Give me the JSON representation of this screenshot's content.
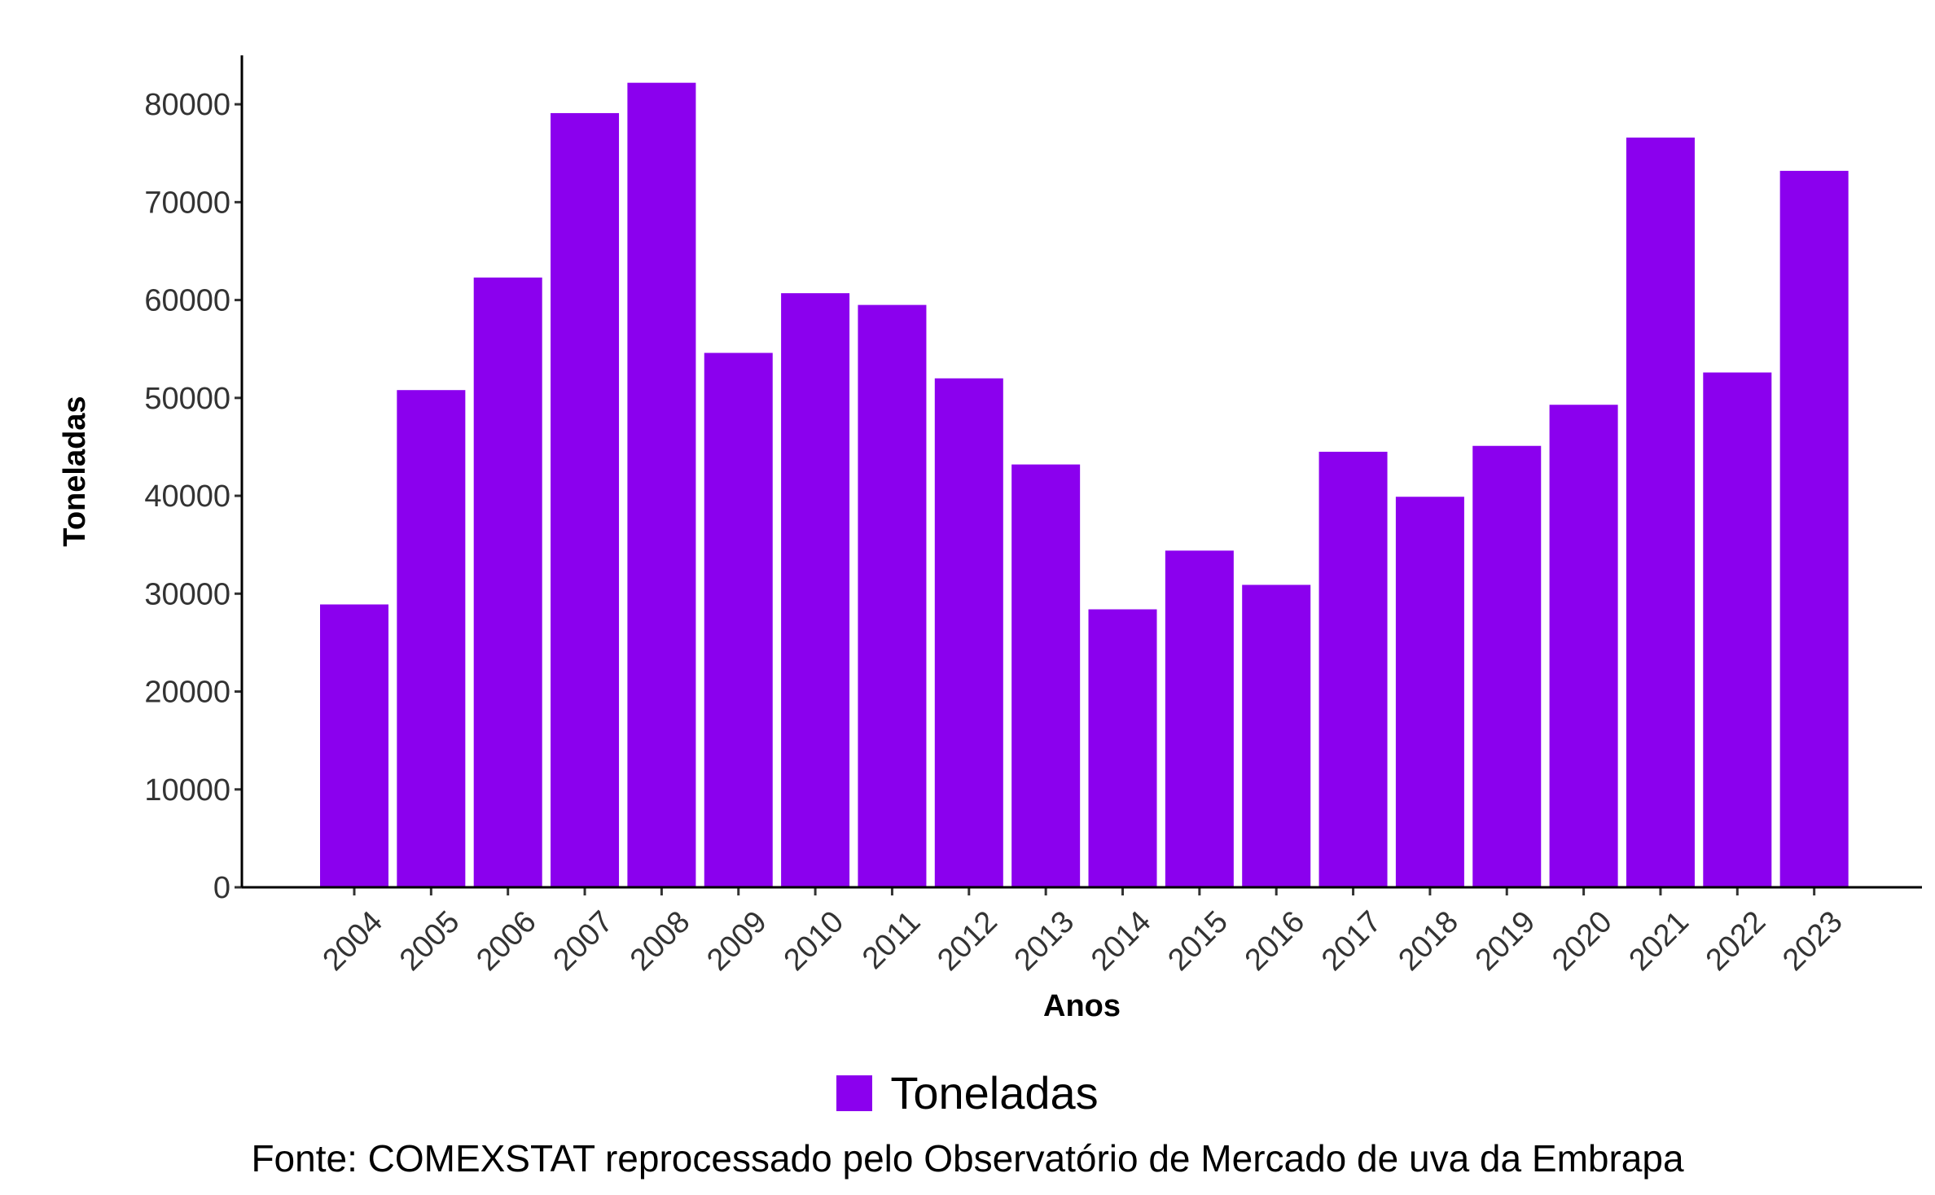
{
  "chart_data": {
    "type": "bar",
    "categories": [
      "2004",
      "2005",
      "2006",
      "2007",
      "2008",
      "2009",
      "2010",
      "2011",
      "2012",
      "2013",
      "2014",
      "2015",
      "2016",
      "2017",
      "2018",
      "2019",
      "2020",
      "2021",
      "2022",
      "2023"
    ],
    "series": [
      {
        "name": "Toneladas",
        "values": [
          28900,
          50800,
          62300,
          79100,
          82200,
          54600,
          60700,
          59500,
          52000,
          43200,
          28400,
          34400,
          30900,
          44500,
          39900,
          45100,
          49300,
          76600,
          52600,
          73200
        ]
      }
    ],
    "xlabel": "Anos",
    "ylabel": "Toneladas",
    "ylim": [
      0,
      85000
    ],
    "yticks": [
      0,
      10000,
      20000,
      30000,
      40000,
      50000,
      60000,
      70000,
      80000
    ],
    "legend": "bottom",
    "grid": false,
    "bar_color": "#8B00EE",
    "caption": "Fonte: COMEXSTAT reprocessado pelo Observatório de Mercado de uva da Embrapa"
  }
}
